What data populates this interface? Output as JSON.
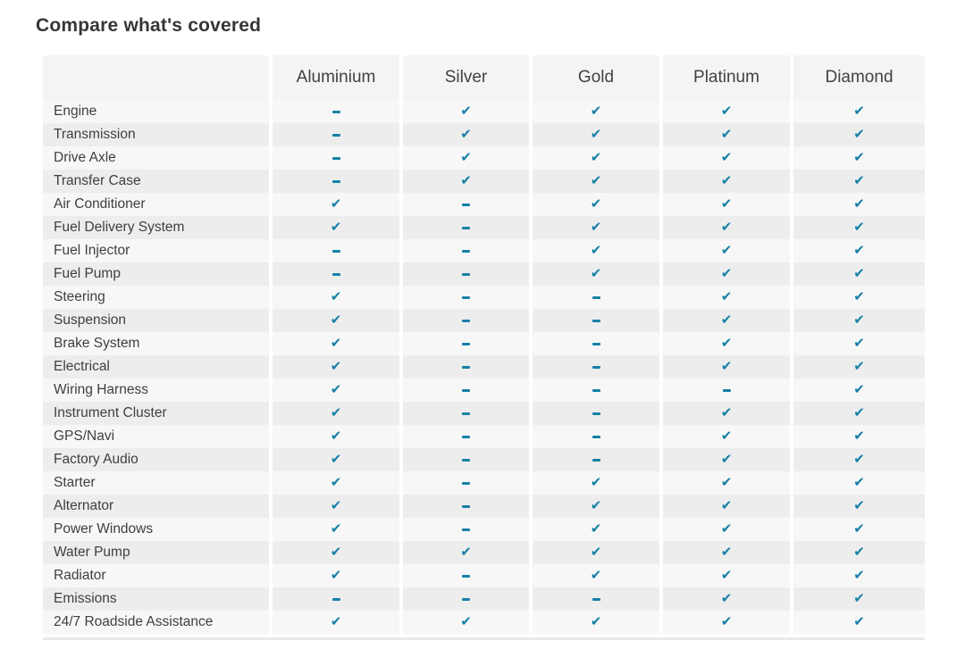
{
  "page": {
    "title": "Compare what's covered"
  },
  "colors": {
    "mark": "#1580a6",
    "row_light": "#f7f7f7",
    "row_dark": "#ededed",
    "header_bg": "#f4f4f4"
  },
  "icons": {
    "check": {
      "name": "check-icon",
      "glyph": "✔"
    },
    "dash": {
      "name": "dash-icon",
      "glyph": "-"
    }
  },
  "table": {
    "columns": [
      "Aluminium",
      "Silver",
      "Gold",
      "Platinum",
      "Diamond"
    ],
    "rows": [
      {
        "label": "Engine",
        "coverage": [
          false,
          true,
          true,
          true,
          true
        ]
      },
      {
        "label": "Transmission",
        "coverage": [
          false,
          true,
          true,
          true,
          true
        ]
      },
      {
        "label": "Drive Axle",
        "coverage": [
          false,
          true,
          true,
          true,
          true
        ]
      },
      {
        "label": "Transfer Case",
        "coverage": [
          false,
          true,
          true,
          true,
          true
        ]
      },
      {
        "label": "Air Conditioner",
        "coverage": [
          true,
          false,
          true,
          true,
          true
        ]
      },
      {
        "label": "Fuel Delivery System",
        "coverage": [
          true,
          false,
          true,
          true,
          true
        ]
      },
      {
        "label": "Fuel Injector",
        "coverage": [
          false,
          false,
          true,
          true,
          true
        ]
      },
      {
        "label": "Fuel Pump",
        "coverage": [
          false,
          false,
          true,
          true,
          true
        ]
      },
      {
        "label": "Steering",
        "coverage": [
          true,
          false,
          false,
          true,
          true
        ]
      },
      {
        "label": "Suspension",
        "coverage": [
          true,
          false,
          false,
          true,
          true
        ]
      },
      {
        "label": "Brake System",
        "coverage": [
          true,
          false,
          false,
          true,
          true
        ]
      },
      {
        "label": "Electrical",
        "coverage": [
          true,
          false,
          false,
          true,
          true
        ]
      },
      {
        "label": "Wiring Harness",
        "coverage": [
          true,
          false,
          false,
          false,
          true
        ]
      },
      {
        "label": "Instrument Cluster",
        "coverage": [
          true,
          false,
          false,
          true,
          true
        ]
      },
      {
        "label": "GPS/Navi",
        "coverage": [
          true,
          false,
          false,
          true,
          true
        ]
      },
      {
        "label": "Factory Audio",
        "coverage": [
          true,
          false,
          false,
          true,
          true
        ]
      },
      {
        "label": "Starter",
        "coverage": [
          true,
          false,
          true,
          true,
          true
        ]
      },
      {
        "label": "Alternator",
        "coverage": [
          true,
          false,
          true,
          true,
          true
        ]
      },
      {
        "label": "Power Windows",
        "coverage": [
          true,
          false,
          true,
          true,
          true
        ]
      },
      {
        "label": "Water Pump",
        "coverage": [
          true,
          true,
          true,
          true,
          true
        ]
      },
      {
        "label": "Radiator",
        "coverage": [
          true,
          false,
          true,
          true,
          true
        ]
      },
      {
        "label": "Emissions",
        "coverage": [
          false,
          false,
          false,
          true,
          true
        ]
      },
      {
        "label": "24/7 Roadside Assistance",
        "coverage": [
          true,
          true,
          true,
          true,
          true
        ]
      }
    ]
  }
}
